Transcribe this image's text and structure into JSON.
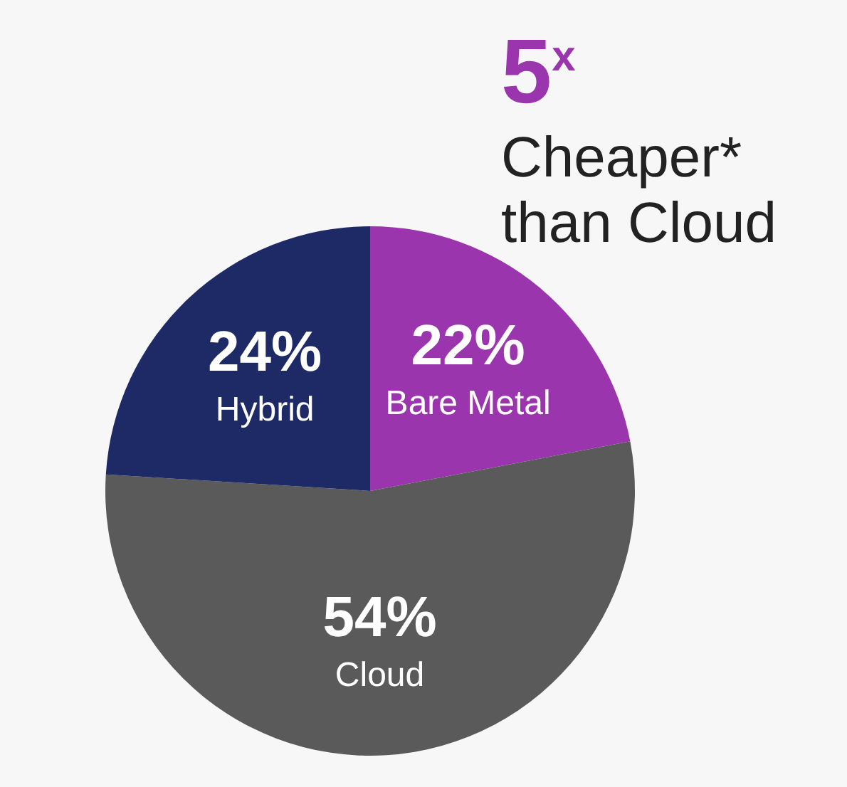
{
  "chart_data": {
    "type": "pie",
    "title": "5$^{x}$",
    "subtitle": "Cheaper* than Cloud",
    "categories": [
      "Bare Metal",
      "Cloud",
      "Hybrid"
    ],
    "values": [
      22,
      54,
      24
    ],
    "colors": [
      "#9a35ad",
      "#5a5a5a",
      "#1e2a66"
    ],
    "value_labels": [
      "22%",
      "54%",
      "24%"
    ]
  }
}
